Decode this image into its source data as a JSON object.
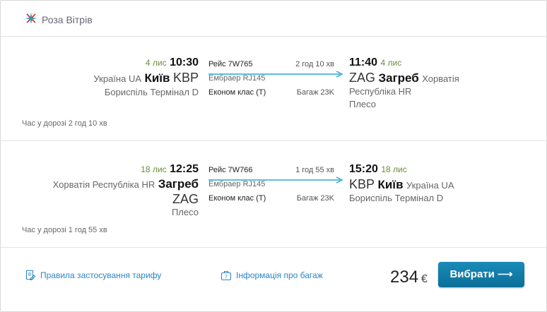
{
  "airline": {
    "name": "Роза Вітрів"
  },
  "colors": {
    "accent": "#2a86c7",
    "date_green": "#6b8e3a",
    "button": "#0b6f99"
  },
  "segments": [
    {
      "dep": {
        "date": "4 лис",
        "time": "10:30",
        "country": "Україна UA",
        "city": "Київ",
        "code": "KBP",
        "airport": "Бориспіль Термінал D"
      },
      "flight": {
        "number": "Рейс 7W765",
        "duration": "2 год 10 хв",
        "aircraft": "Ембраер RJ145",
        "class": "Економ клас (T)",
        "baggage": "Багаж 23K"
      },
      "arr": {
        "time": "11:40",
        "date": "4 лис",
        "code": "ZAG",
        "city": "Загреб",
        "country": "Хорватія",
        "country2": "Республіка HR",
        "airport": "Плесо"
      },
      "total": "Час у дорозі 2 год 10 хв"
    },
    {
      "dep": {
        "date": "18 лис",
        "time": "12:25",
        "country": "Хорватія Республіка HR",
        "city": "Загреб",
        "code": "ZAG",
        "airport": "Плесо"
      },
      "flight": {
        "number": "Рейс 7W766",
        "duration": "1 год 55 хв",
        "aircraft": "Ембраер RJ145",
        "class": "Економ клас (T)",
        "baggage": "Багаж 23K"
      },
      "arr": {
        "time": "15:20",
        "date": "18 лис",
        "code": "KBP",
        "city": "Київ",
        "country": "Україна UA",
        "airport": "Бориспіль Термінал D"
      },
      "total": "Час у дорозі 1 год 55 хв"
    }
  ],
  "footer": {
    "fare_rules": "Правила застосування тарифу",
    "baggage_info": "Інформація про багаж",
    "price": "234",
    "currency": "€",
    "select_label": "Вибрати ⟶"
  }
}
